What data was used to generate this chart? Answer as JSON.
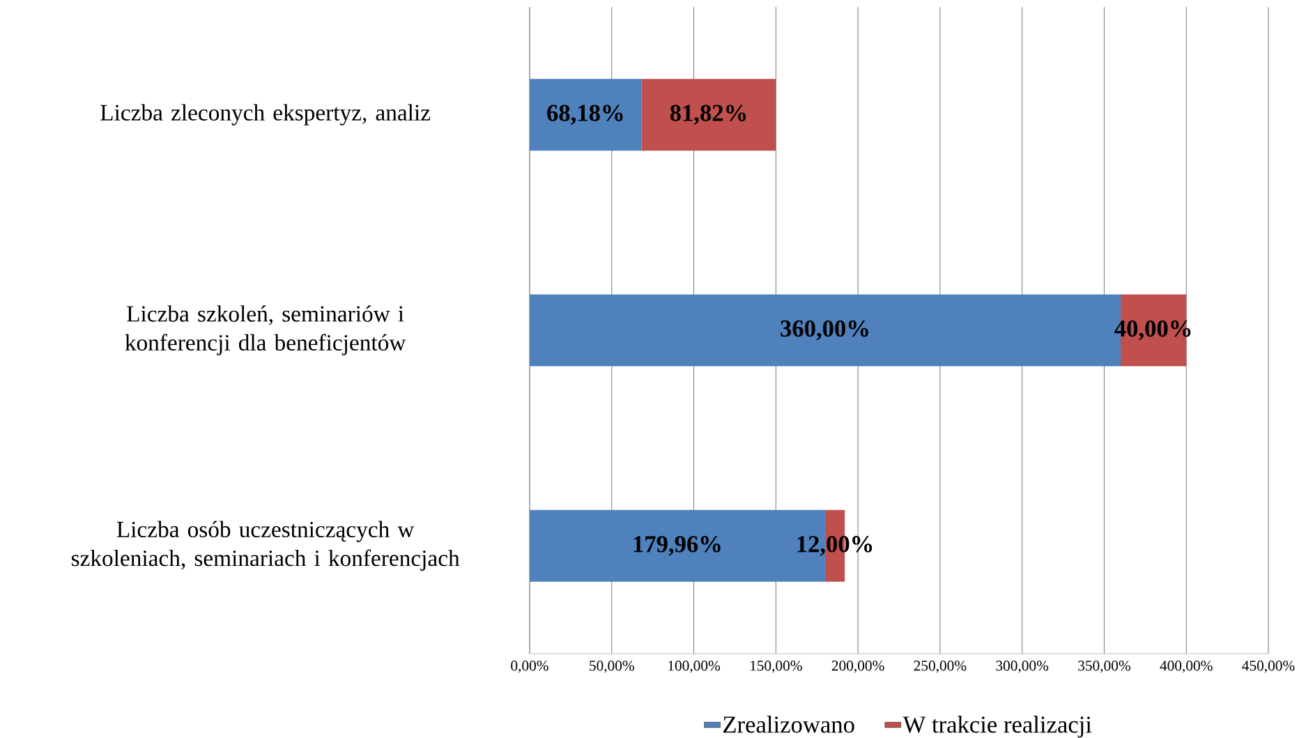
{
  "chart_data": {
    "type": "bar",
    "orientation": "horizontal",
    "stacked": true,
    "categories": [
      "Liczba zleconych ekspertyz, analiz",
      "Liczba szkoleń, seminariów i konferencji dla beneficjentów",
      "Liczba osób uczestniczących w szkoleniach, seminariach i konferencjach"
    ],
    "series": [
      {
        "name": "Zrealizowano",
        "color": "#4f81bd",
        "values": [
          68.18,
          360,
          179.96
        ],
        "value_labels": [
          "68,18%",
          "360,00%",
          "179,96%"
        ]
      },
      {
        "name": "W trakcie realizacji",
        "color": "#c0504d",
        "values": [
          81.82,
          40,
          12
        ],
        "value_labels": [
          "81,82%",
          "40,00%",
          "12,00%"
        ]
      }
    ],
    "xlim": [
      0,
      450
    ],
    "xticks": [
      {
        "value": 0,
        "label": "0,00%"
      },
      {
        "value": 50,
        "label": "50,00%"
      },
      {
        "value": 100,
        "label": "100,00%"
      },
      {
        "value": 150,
        "label": "150,00%"
      },
      {
        "value": 200,
        "label": "200,00%"
      },
      {
        "value": 250,
        "label": "250,00%"
      },
      {
        "value": 300,
        "label": "300,00%"
      },
      {
        "value": 350,
        "label": "350,00%"
      },
      {
        "value": 400,
        "label": "400,00%"
      },
      {
        "value": 450,
        "label": "450,00%"
      }
    ],
    "grid": "x",
    "legend": "bottom"
  }
}
